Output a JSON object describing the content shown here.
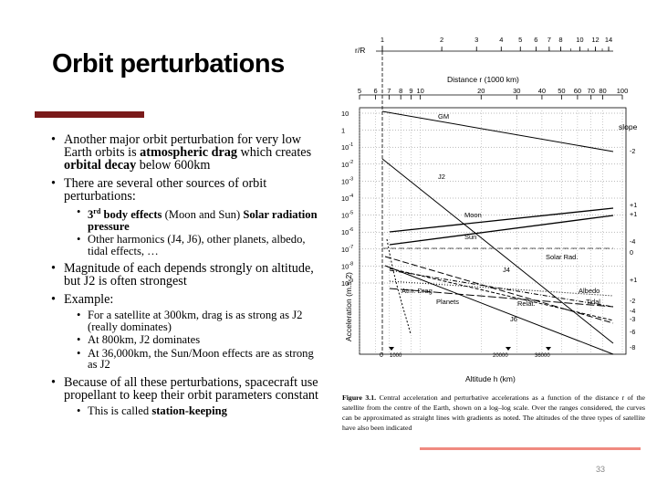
{
  "slide": {
    "title": "Orbit perturbations",
    "page_number": "33",
    "colors": {
      "accent_bar": "#7a1a1a",
      "bottom_line": "#f08a80"
    }
  },
  "bullets": [
    {
      "pre": "Another major orbit perturbation for very low Earth orbits is ",
      "bold1": "atmospheric drag",
      "mid": " which creates ",
      "bold2": "orbital decay",
      "post": " below 600km"
    },
    {
      "text": "There are several other sources of orbit perturbations:"
    },
    {
      "sup_num": "3",
      "sup": "rd",
      "bold1": " body effects",
      "mid": " (Moon and Sun) ",
      "bold2": "Solar radiation pressure"
    },
    {
      "text": "Other harmonics (J4, J6), other planets, albedo, tidal effects, …"
    },
    {
      "text": "Magnitude of each depends strongly on altitude, but J2 is often strongest"
    },
    {
      "text": "Example:"
    },
    {
      "text": "For a satellite at 300km, drag is as strong as J2 (really dominates)"
    },
    {
      "text": "At 800km, J2 dominates"
    },
    {
      "text": "At 36,000km, the Sun/Moon effects are as strong as J2"
    },
    {
      "text": "Because of all these perturbations, spacecraft use propellant to keep their orbit parameters constant"
    },
    {
      "pre": "This is called ",
      "bold1": "station-keeping"
    }
  ],
  "figure": {
    "top_axis_label": "r/R",
    "top_ticks": [
      "1",
      "2",
      "3",
      "4",
      "5",
      "6",
      "7",
      "8",
      "10",
      "12",
      "14"
    ],
    "distance_label": "Distance r (1000 km)",
    "distance_ticks": [
      "5",
      "6",
      "7",
      "8",
      "9",
      "10",
      "20",
      "30",
      "40",
      "50",
      "60",
      "70",
      "80",
      "100"
    ],
    "y_ticks": [
      {
        "base": "10",
        "exp": ""
      },
      {
        "base": "1",
        "exp": ""
      },
      {
        "base": "10",
        "exp": "-1"
      },
      {
        "base": "10",
        "exp": "-2"
      },
      {
        "base": "10",
        "exp": "-3"
      },
      {
        "base": "10",
        "exp": "-4"
      },
      {
        "base": "10",
        "exp": "-5"
      },
      {
        "base": "10",
        "exp": "-6"
      },
      {
        "base": "10",
        "exp": "-7"
      },
      {
        "base": "10",
        "exp": "-8"
      },
      {
        "base": "10",
        "exp": "-9"
      }
    ],
    "ylabel": "Acceleration (m.s-2)",
    "slope_header": "slope",
    "slope_labels": [
      "-2",
      "+1",
      "+1",
      "-4",
      "0",
      "+1",
      "-2",
      "-4",
      "-3",
      "-6",
      "-8"
    ],
    "curve_labels": [
      "GM",
      "J2",
      "Moon",
      "Sun",
      "Solar Rad.",
      "J4",
      "Atm. Drag",
      "Albedo",
      "Planets",
      "Relat.",
      "Tidal",
      "J6"
    ],
    "altitude_ticks": [
      "0",
      "1000",
      "20000",
      "36000"
    ],
    "xlabel": "Altitude h (km)",
    "caption_head": "Figure 3.1.",
    "caption_text": "Central acceleration and perturbative accelerations as a function of the distance r of the satellite from the centre of the Earth, shown on a log–log scale. Over the ranges considered, the curves can be approximated as straight lines with gradients as noted. The altitudes of the three types of satellite have also been indicated"
  }
}
